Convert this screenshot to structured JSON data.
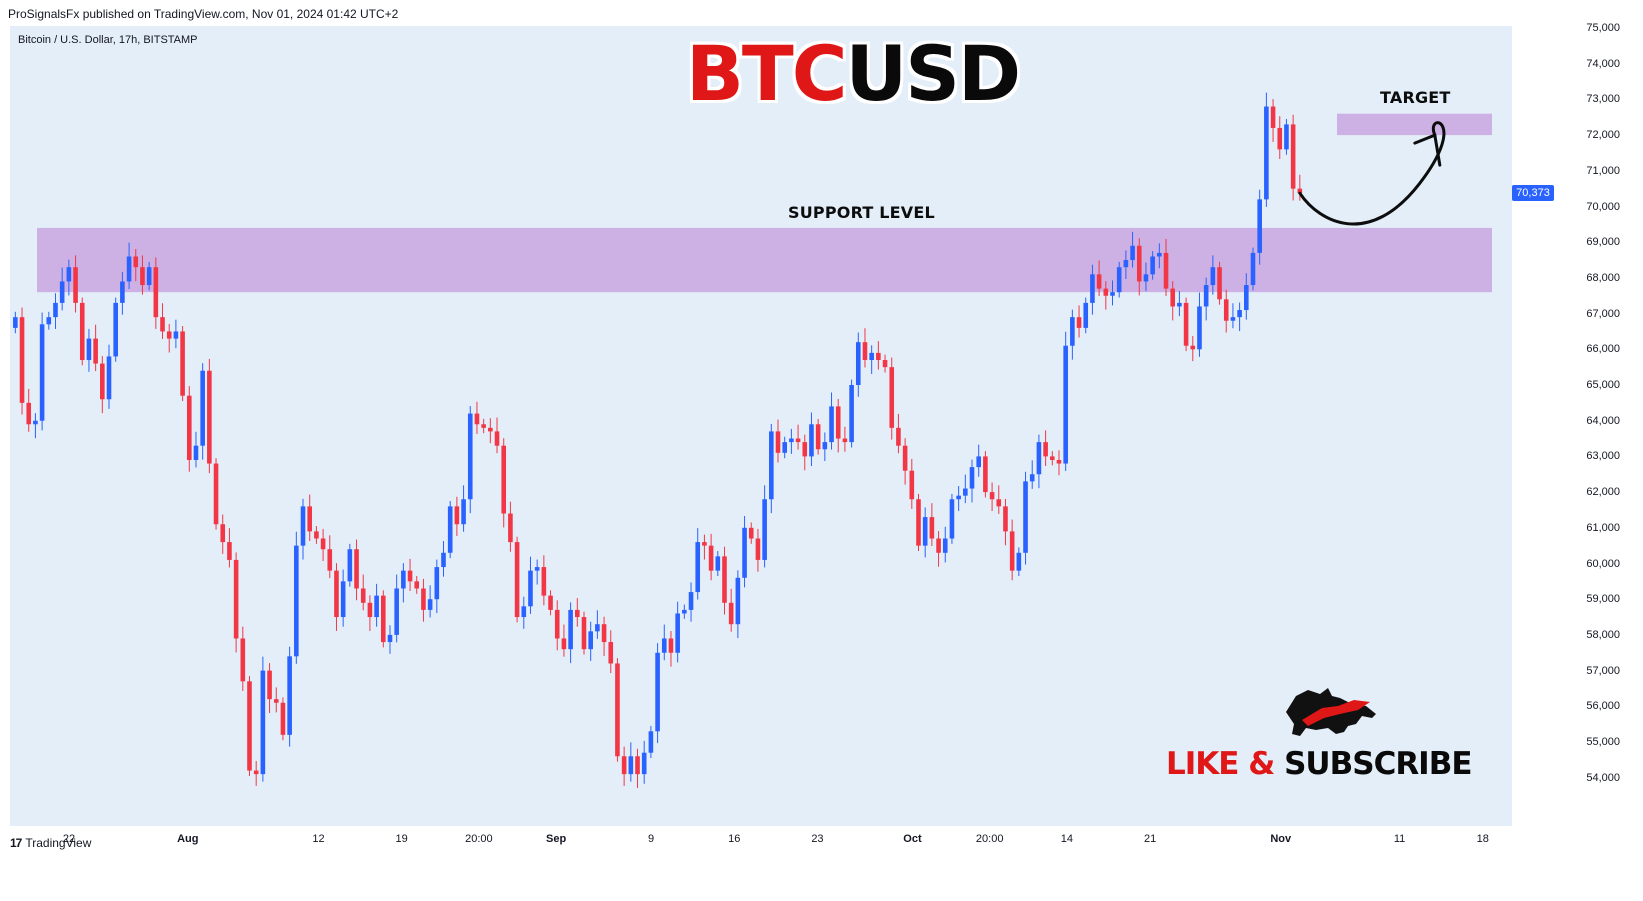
{
  "header": {
    "published_line": "ProSignalsFx published on TradingView.com, Nov 01, 2024 01:42 UTC+2"
  },
  "symbol": {
    "description": "Bitcoin / U.S. Dollar, 17h, BITSTAMP"
  },
  "title": {
    "part_red": "BTC",
    "part_black": "USD"
  },
  "annotations": {
    "support_label": "SUPPORT LEVEL",
    "target_label": "TARGET",
    "cta_red": "LIKE &",
    "cta_black": "SUBSCRIBE"
  },
  "last_price": {
    "label": "70,373",
    "value": 70373
  },
  "footer": {
    "brand": "TradingView",
    "logo_glyph": "17"
  },
  "colors": {
    "up": "#2962ff",
    "down": "#f23645",
    "zone": "#c9a6e0",
    "panel": "#e3eef9",
    "tag": "#2962ff"
  },
  "chart_data": {
    "type": "candlestick",
    "y_ticks": [
      "75,000",
      "74,000",
      "73,000",
      "72,000",
      "71,000",
      "70,000",
      "69,000",
      "68,000",
      "67,000",
      "66,000",
      "65,000",
      "64,000",
      "63,000",
      "62,000",
      "61,000",
      "60,000",
      "59,000",
      "58,000",
      "57,000",
      "56,000",
      "55,000",
      "54,000"
    ],
    "ylim": [
      53500,
      75000
    ],
    "x_ticks": [
      {
        "label": "22",
        "day": 22,
        "bold": false
      },
      {
        "label": "Aug",
        "day": 32,
        "bold": true
      },
      {
        "label": "12",
        "day": 43,
        "bold": false
      },
      {
        "label": "19",
        "day": 50,
        "bold": false
      },
      {
        "label": "20:00",
        "day": 56.5,
        "bold": false
      },
      {
        "label": "Sep",
        "day": 63,
        "bold": true
      },
      {
        "label": "9",
        "day": 71,
        "bold": false
      },
      {
        "label": "16",
        "day": 78,
        "bold": false
      },
      {
        "label": "23",
        "day": 85,
        "bold": false
      },
      {
        "label": "Oct",
        "day": 93,
        "bold": true
      },
      {
        "label": "20:00",
        "day": 99.5,
        "bold": false
      },
      {
        "label": "14",
        "day": 106,
        "bold": false
      },
      {
        "label": "21",
        "day": 113,
        "bold": false
      },
      {
        "label": "Nov",
        "day": 124,
        "bold": true
      },
      {
        "label": "11",
        "day": 134,
        "bold": false
      },
      {
        "label": "18",
        "day": 141,
        "bold": false
      }
    ],
    "support_zone": [
      67600,
      69400
    ],
    "target_zone": [
      72000,
      72600
    ],
    "closes": [
      66900,
      64500,
      63900,
      64000,
      66700,
      66900,
      67300,
      67900,
      68300,
      67300,
      65700,
      66300,
      65600,
      64600,
      65800,
      67300,
      67900,
      68600,
      68300,
      67800,
      68300,
      66900,
      66500,
      66300,
      66500,
      64700,
      62900,
      63300,
      65400,
      62800,
      61100,
      60600,
      60100,
      57900,
      56700,
      54200,
      54100,
      57000,
      56200,
      56100,
      55200,
      57400,
      60500,
      61600,
      60900,
      60700,
      60400,
      59800,
      58500,
      59500,
      60400,
      59300,
      58900,
      58500,
      59100,
      57800,
      58000,
      59300,
      59800,
      59500,
      59300,
      58700,
      59000,
      59900,
      60300,
      61600,
      61100,
      61800,
      64200,
      63900,
      63800,
      63700,
      63300,
      61400,
      60600,
      58500,
      58800,
      59800,
      59900,
      59100,
      58700,
      57900,
      57600,
      58700,
      58500,
      57600,
      58100,
      58300,
      57800,
      57200,
      54600,
      54100,
      54600,
      54100,
      54700,
      55300,
      57500,
      57900,
      57500,
      58600,
      58700,
      59200,
      60600,
      60500,
      59800,
      60200,
      58900,
      58300,
      59600,
      61000,
      60700,
      60100,
      61800,
      63700,
      63100,
      63400,
      63500,
      63400,
      63000,
      63900,
      63200,
      63400,
      64400,
      63500,
      63400,
      65000,
      66200,
      65700,
      65900,
      65700,
      65500,
      63800,
      63300,
      62600,
      61800,
      60500,
      61300,
      60700,
      60300,
      60700,
      61800,
      61900,
      62100,
      62700,
      63000,
      62000,
      61800,
      61600,
      60900,
      59800,
      60300,
      62300,
      62500,
      63400,
      63000,
      62900,
      62800,
      66100,
      66900,
      66600,
      67300,
      68100,
      67700,
      67500,
      67600,
      68300,
      68500,
      68900,
      67900,
      68100,
      68600,
      68700,
      67700,
      67200,
      67300,
      66100,
      66000,
      67200,
      67800,
      68300,
      67400,
      66800,
      66900,
      67100,
      67800,
      68700,
      70200,
      72800,
      72200,
      71600,
      72300,
      70500,
      70373
    ]
  }
}
